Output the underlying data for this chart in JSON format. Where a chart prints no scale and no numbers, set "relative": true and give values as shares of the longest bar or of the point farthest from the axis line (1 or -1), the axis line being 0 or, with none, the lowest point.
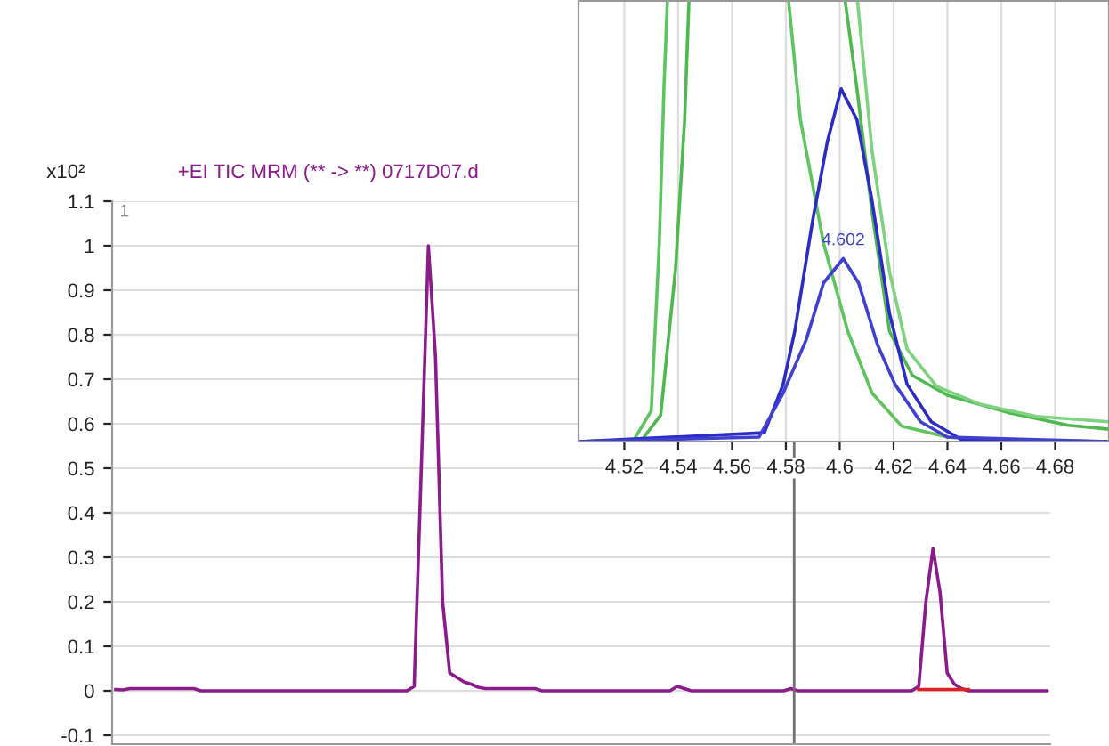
{
  "chart_data": [
    {
      "type": "line",
      "title": "+EI TIC MRM (** -> **) 0717D07.d",
      "ylabel": "x10²",
      "annotations": [
        "1"
      ],
      "categories": [
        null,
        null,
        null,
        null,
        null,
        null,
        null,
        null,
        null,
        null,
        null,
        null,
        null,
        null,
        null,
        null,
        null,
        null,
        null,
        null,
        null,
        null,
        null,
        null,
        null,
        null,
        null,
        null,
        null,
        null,
        null,
        null,
        null,
        null,
        null,
        null,
        null,
        null,
        null,
        null,
        null,
        null,
        null,
        null,
        null,
        null,
        null,
        null,
        null,
        null,
        null,
        null,
        null,
        null,
        null,
        null,
        null,
        null,
        null,
        null,
        null,
        null,
        null,
        null,
        null,
        null,
        null,
        null,
        null,
        null,
        null,
        null,
        null,
        null,
        null,
        null,
        null,
        null,
        null,
        null,
        null,
        null,
        null,
        null,
        null,
        null,
        null,
        null,
        null,
        null,
        null,
        null,
        null,
        null,
        null,
        null,
        null,
        null,
        null,
        null,
        null,
        null,
        null,
        null,
        null,
        null,
        null,
        null,
        null,
        null,
        null,
        null,
        null,
        null,
        null,
        null,
        null,
        null,
        null,
        null,
        null,
        null,
        null,
        null,
        null,
        null,
        null,
        null,
        null,
        null,
        null,
        null
      ],
      "series": [
        {
          "color": "#8b1a8b",
          "values": [
            0.003,
            0.002,
            0.005,
            0.005,
            0.005,
            0.005,
            0.005,
            0.005,
            0.005,
            0.005,
            0.005,
            0.005,
            0,
            0,
            0,
            0,
            0,
            0,
            0,
            0,
            0,
            0,
            0,
            0,
            0,
            0,
            0,
            0,
            0,
            0,
            0,
            0,
            0,
            0,
            0,
            0,
            0,
            0,
            0,
            0,
            0,
            0,
            0.01,
            0.5,
            1.0,
            0.75,
            0.2,
            0.04,
            0.03,
            0.02,
            0.015,
            0.008,
            0.005,
            0.005,
            0.005,
            0.005,
            0.005,
            0.005,
            0.005,
            0.005,
            0,
            0,
            0,
            0,
            0,
            0,
            0,
            0,
            0,
            0,
            0,
            0,
            0,
            0,
            0,
            0,
            0,
            0,
            0,
            0.01,
            0.005,
            0,
            0,
            0,
            0,
            0,
            0,
            0,
            0,
            0,
            0,
            0,
            0,
            0,
            0,
            0.005,
            0,
            0,
            0,
            0,
            0,
            0,
            0,
            0,
            0,
            0,
            0,
            0,
            0,
            0,
            0,
            0,
            0,
            0.01,
            0.2,
            0.32,
            0.22,
            0.04,
            0.015,
            0.005,
            0,
            0,
            0,
            0,
            0,
            0,
            0,
            0,
            0,
            0,
            0,
            0
          ]
        },
        {
          "color": "#e02020",
          "values": [
            null,
            null,
            null,
            null,
            null,
            null,
            null,
            null,
            null,
            null,
            null,
            null,
            null,
            null,
            null,
            null,
            null,
            null,
            null,
            null,
            null,
            null,
            null,
            null,
            null,
            null,
            null,
            null,
            null,
            null,
            null,
            null,
            null,
            null,
            null,
            null,
            null,
            null,
            null,
            null,
            null,
            null,
            null,
            null,
            null,
            null,
            null,
            null,
            null,
            null,
            null,
            null,
            null,
            null,
            null,
            null,
            null,
            null,
            null,
            null,
            null,
            null,
            null,
            null,
            null,
            null,
            null,
            null,
            null,
            null,
            null,
            null,
            null,
            null,
            null,
            null,
            null,
            null,
            null,
            null,
            null,
            null,
            null,
            null,
            null,
            null,
            null,
            null,
            null,
            null,
            null,
            null,
            null,
            null,
            null,
            null,
            null,
            null,
            null,
            null,
            null,
            null,
            null,
            null,
            null,
            null,
            null,
            null,
            null,
            null,
            null,
            null,
            null,
            0.003,
            0.003,
            0.003,
            0.003,
            0.003,
            0.003,
            0.003,
            0.003,
            null,
            null,
            null,
            null,
            null,
            null,
            null,
            null,
            null,
            null,
            null
          ]
        }
      ],
      "ylim": [
        -0.12,
        1.1
      ],
      "yticks": [
        {
          "value": -0.1,
          "label": "-0.1"
        },
        0,
        0.1,
        0.2,
        0.3,
        0.4,
        0.5,
        0.6,
        0.7,
        0.8,
        0.9,
        1,
        1.1
      ],
      "grid": "y",
      "legend": false,
      "tick_labels": "y",
      "marker": "none",
      "line_style": "solid"
    },
    {
      "type": "line",
      "relative": true,
      "series": [
        {
          "color": "#5ec45e",
          "x": [
            4.503,
            4.5236,
            4.53,
            4.533,
            4.5347,
            4.536,
            4.558,
            4.581,
            4.5854,
            4.594,
            4.603,
            4.612,
            4.623,
            4.64,
            4.66
          ],
          "values": [
            0,
            0.004,
            0.07,
            0.45,
            0.8,
            1,
            null,
            1,
            0.73,
            0.45,
            0.25,
            0.11,
            0.035,
            0.01,
            0
          ]
        },
        {
          "color": "#4fb84f",
          "x": [
            4.503,
            4.526,
            4.5335,
            4.539,
            4.5424,
            4.544,
            4.573,
            4.602,
            4.6064,
            4.612,
            4.6185,
            4.627,
            4.64,
            4.663,
            4.685,
            4.7
          ],
          "values": [
            0,
            0.0,
            0.06,
            0.39,
            0.73,
            1,
            null,
            1,
            0.8,
            0.52,
            0.25,
            0.15,
            0.105,
            0.065,
            0.037,
            0.028
          ]
        },
        {
          "color": "#7fd27f",
          "x": [
            4.6066,
            4.612,
            4.6185,
            4.625,
            4.636,
            4.652,
            4.673,
            4.7
          ],
          "values": [
            1,
            0.66,
            0.385,
            0.21,
            0.125,
            0.085,
            0.057,
            0.045
          ]
        },
        {
          "color": "#2b2bc8",
          "x": [
            4.503,
            4.572,
            4.579,
            4.5833,
            4.5899,
            4.5954,
            4.6005,
            4.6064,
            4.6119,
            4.6185,
            4.625,
            4.634,
            4.645,
            4.7
          ],
          "values": [
            0,
            0.02,
            0.13,
            0.25,
            0.5,
            0.68,
            0.8,
            0.73,
            0.55,
            0.29,
            0.13,
            0.045,
            0.005,
            0
          ]
        },
        {
          "color": "#4040d0",
          "x": [
            4.503,
            4.57,
            4.579,
            4.5875,
            4.594,
            4.6013,
            4.607,
            4.614,
            4.6205,
            4.63,
            4.64,
            4.7
          ],
          "values": [
            0,
            0.01,
            0.11,
            0.23,
            0.36,
            0.415,
            0.36,
            0.22,
            0.13,
            0.045,
            0.01,
            0
          ]
        }
      ],
      "annotations": [
        "4.602"
      ],
      "xlim": [
        4.503,
        4.7
      ],
      "xticks": [
        4.52,
        4.54,
        4.56,
        4.58,
        4.6,
        4.62,
        4.64,
        4.66,
        4.68
      ],
      "grid": "x",
      "legend": false,
      "tick_labels": "x",
      "marker": "none",
      "line_style": "solid"
    }
  ]
}
